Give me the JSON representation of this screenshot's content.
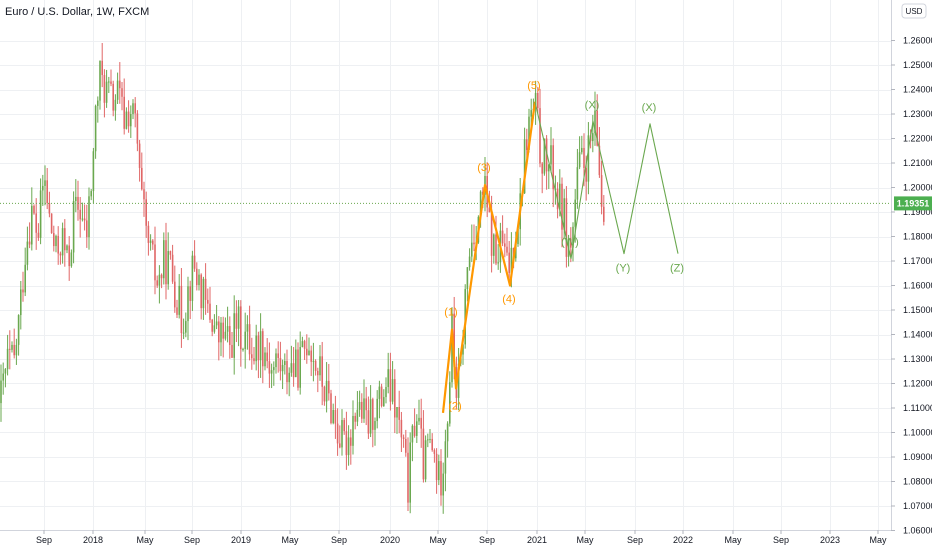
{
  "chart_data": {
    "type": "candlestick",
    "title": "Euro / U.S. Dollar, 1W, FXCM",
    "currency": "USD",
    "last_price": "1.19351",
    "y_ticks": [
      "1.06000",
      "1.07000",
      "1.08000",
      "1.09000",
      "1.10000",
      "1.11000",
      "1.12000",
      "1.13000",
      "1.14000",
      "1.15000",
      "1.16000",
      "1.17000",
      "1.18000",
      "1.19000",
      "1.20000",
      "1.21000",
      "1.22000",
      "1.23000",
      "1.24000",
      "1.25000",
      "1.26000"
    ],
    "ylim": [
      1.055,
      1.263
    ],
    "x_ticks": [
      "Sep",
      "2018",
      "May",
      "Sep",
      "2019",
      "May",
      "Sep",
      "2020",
      "May",
      "Sep",
      "2021",
      "May",
      "Sep",
      "2022",
      "May",
      "Sep",
      "2023",
      "May"
    ],
    "grid": true,
    "colors": {
      "up": "#6aa84f",
      "down": "#e06666",
      "impulse": "#ff9800",
      "correction": "#6aa84f",
      "price_tag": "#4caf50",
      "grid": "#eef0f3"
    },
    "price_path": [
      [
        0,
        1.112
      ],
      [
        8,
        1.13
      ],
      [
        14,
        1.128
      ],
      [
        20,
        1.15
      ],
      [
        26,
        1.178
      ],
      [
        32,
        1.19
      ],
      [
        38,
        1.18
      ],
      [
        44,
        1.205
      ],
      [
        50,
        1.185
      ],
      [
        56,
        1.172
      ],
      [
        62,
        1.18
      ],
      [
        68,
        1.167
      ],
      [
        74,
        1.19
      ],
      [
        80,
        1.192
      ],
      [
        86,
        1.178
      ],
      [
        92,
        1.205
      ],
      [
        96,
        1.232
      ],
      [
        100,
        1.245
      ],
      [
        106,
        1.24
      ],
      [
        112,
        1.235
      ],
      [
        118,
        1.238
      ],
      [
        124,
        1.228
      ],
      [
        130,
        1.232
      ],
      [
        136,
        1.225
      ],
      [
        140,
        1.2
      ],
      [
        146,
        1.18
      ],
      [
        152,
        1.17
      ],
      [
        158,
        1.16
      ],
      [
        164,
        1.17
      ],
      [
        170,
        1.168
      ],
      [
        176,
        1.158
      ],
      [
        182,
        1.145
      ],
      [
        188,
        1.158
      ],
      [
        194,
        1.168
      ],
      [
        200,
        1.16
      ],
      [
        206,
        1.15
      ],
      [
        212,
        1.147
      ],
      [
        218,
        1.138
      ],
      [
        224,
        1.14
      ],
      [
        230,
        1.135
      ],
      [
        236,
        1.145
      ],
      [
        242,
        1.14
      ],
      [
        248,
        1.138
      ],
      [
        254,
        1.133
      ],
      [
        260,
        1.138
      ],
      [
        266,
        1.133
      ],
      [
        272,
        1.125
      ],
      [
        278,
        1.13
      ],
      [
        284,
        1.123
      ],
      [
        290,
        1.128
      ],
      [
        296,
        1.125
      ],
      [
        302,
        1.13
      ],
      [
        308,
        1.14
      ],
      [
        314,
        1.13
      ],
      [
        320,
        1.124
      ],
      [
        326,
        1.115
      ],
      [
        332,
        1.11
      ],
      [
        338,
        1.1
      ],
      [
        344,
        1.095
      ],
      [
        350,
        1.1
      ],
      [
        356,
        1.112
      ],
      [
        362,
        1.108
      ],
      [
        368,
        1.103
      ],
      [
        374,
        1.11
      ],
      [
        380,
        1.112
      ],
      [
        386,
        1.12
      ],
      [
        392,
        1.115
      ],
      [
        398,
        1.105
      ],
      [
        404,
        1.09
      ],
      [
        408,
        1.078
      ],
      [
        412,
        1.095
      ],
      [
        416,
        1.11
      ],
      [
        420,
        1.098
      ],
      [
        424,
        1.085
      ],
      [
        428,
        1.095
      ],
      [
        434,
        1.09
      ],
      [
        440,
        1.078
      ],
      [
        444,
        1.095
      ],
      [
        448,
        1.11
      ],
      [
        452,
        1.142
      ],
      [
        456,
        1.118
      ],
      [
        460,
        1.122
      ],
      [
        466,
        1.16
      ],
      [
        470,
        1.175
      ],
      [
        474,
        1.182
      ],
      [
        478,
        1.188
      ],
      [
        484,
        1.2
      ],
      [
        490,
        1.182
      ],
      [
        496,
        1.17
      ],
      [
        502,
        1.178
      ],
      [
        508,
        1.165
      ],
      [
        514,
        1.18
      ],
      [
        520,
        1.192
      ],
      [
        524,
        1.212
      ],
      [
        528,
        1.225
      ],
      [
        532,
        1.23
      ],
      [
        536,
        1.232
      ],
      [
        540,
        1.215
      ],
      [
        546,
        1.21
      ],
      [
        552,
        1.208
      ],
      [
        558,
        1.195
      ],
      [
        564,
        1.188
      ],
      [
        568,
        1.175
      ],
      [
        572,
        1.178
      ],
      [
        576,
        1.198
      ],
      [
        580,
        1.21
      ],
      [
        584,
        1.208
      ],
      [
        590,
        1.215
      ],
      [
        594,
        1.225
      ],
      [
        598,
        1.215
      ],
      [
        600,
        1.202
      ],
      [
        604,
        1.188
      ]
    ],
    "impulse_waves": [
      {
        "label": "(1)",
        "value": 1.142
      },
      {
        "label": "(2)",
        "value": 1.118
      },
      {
        "label": "(3)",
        "value": 1.201
      },
      {
        "label": "(4)",
        "value": 1.16
      },
      {
        "label": "(5)",
        "value": 1.235
      }
    ],
    "correction_waves": [
      {
        "label": "(W)",
        "value": 1.171
      },
      {
        "label": "(X)",
        "value": 1.227
      },
      {
        "label": "(Y)",
        "value": 1.173
      },
      {
        "label": "(X)",
        "value": 1.226
      },
      {
        "label": "(Z)",
        "value": 1.173
      }
    ]
  }
}
